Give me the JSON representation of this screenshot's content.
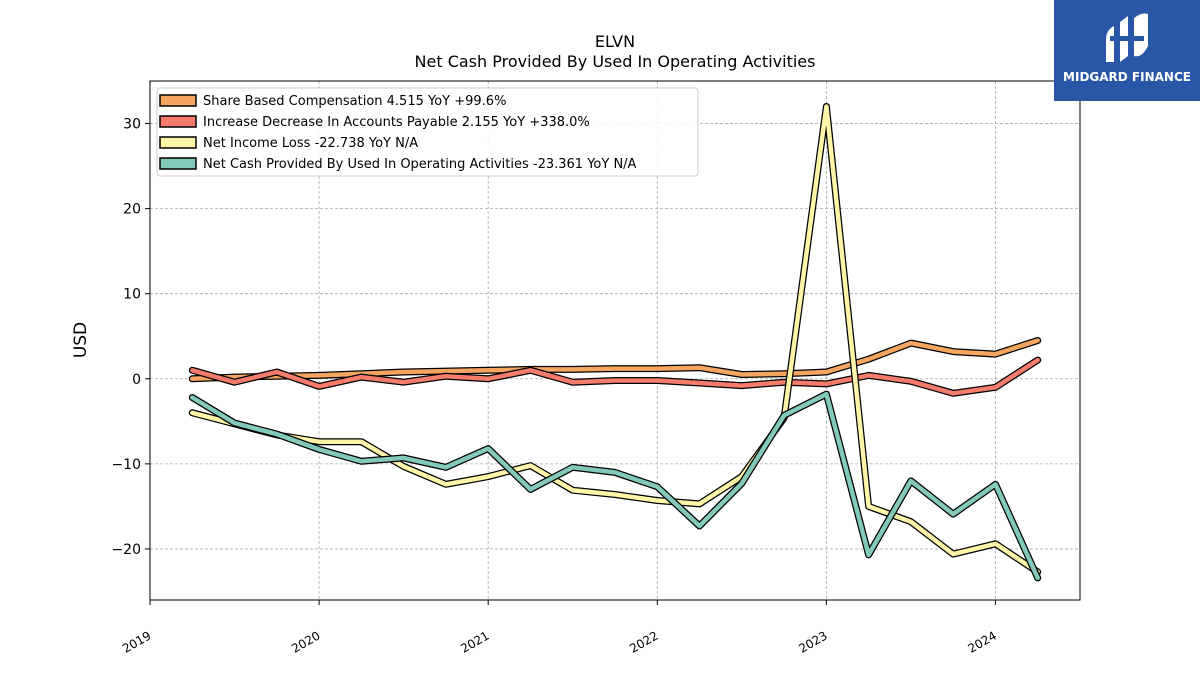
{
  "chart_data": {
    "type": "line",
    "title": "ELVN",
    "subtitle": "Net Cash Provided By Used In Operating Activities",
    "ylabel": "USD",
    "xlabel": "",
    "ylim": [
      -26,
      35
    ],
    "xlim": [
      2019.0,
      2024.5
    ],
    "yticks": [
      -20,
      -10,
      0,
      10,
      20,
      30
    ],
    "ytick_labels": [
      "−20",
      "−10",
      "0",
      "10",
      "20",
      "30"
    ],
    "xticks": [
      2019,
      2020,
      2021,
      2022,
      2023,
      2024
    ],
    "xtick_labels": [
      "2019",
      "2020",
      "2021",
      "2022",
      "2023",
      "2024"
    ],
    "grid": true,
    "legend_position": "top-left",
    "x": [
      2019.25,
      2019.5,
      2019.75,
      2020.0,
      2020.25,
      2020.5,
      2020.75,
      2021.0,
      2021.25,
      2021.5,
      2021.75,
      2022.0,
      2022.25,
      2022.5,
      2022.75,
      2023.0,
      2023.25,
      2023.5,
      2023.75,
      2024.0,
      2024.25
    ],
    "series": [
      {
        "name": "Share Based Compensation",
        "legend": "Share Based Compensation  4.515 YoY +99.6%",
        "color": "#f5a55f",
        "values": [
          0.0,
          0.2,
          0.3,
          0.4,
          0.6,
          0.8,
          0.9,
          1.0,
          1.1,
          1.1,
          1.2,
          1.2,
          1.3,
          0.5,
          0.6,
          0.8,
          2.3,
          4.2,
          3.2,
          2.9,
          4.5
        ]
      },
      {
        "name": "Increase Decrease In Accounts Payable",
        "legend": "Increase Decrease In Accounts Payable  2.155 YoY +338.0%",
        "color": "#f57b6c",
        "values": [
          1.0,
          -0.4,
          0.8,
          -0.9,
          0.2,
          -0.4,
          0.3,
          0.0,
          1.0,
          -0.4,
          -0.2,
          -0.2,
          -0.5,
          -0.8,
          -0.4,
          -0.6,
          0.4,
          -0.3,
          -1.7,
          -1.0,
          2.2
        ]
      },
      {
        "name": "Net Income Loss",
        "legend": "Net Income Loss  -22.738 YoY N/A",
        "color": "#fef5a8",
        "values": [
          -4.0,
          -5.3,
          -6.6,
          -7.4,
          -7.4,
          -10.3,
          -12.4,
          -11.5,
          -10.2,
          -13.1,
          -13.6,
          -14.3,
          -14.7,
          -11.5,
          -4.6,
          32.0,
          -15.0,
          -16.8,
          -20.6,
          -19.4,
          -22.7
        ]
      },
      {
        "name": "Net Cash Provided By Used In Operating Activities",
        "legend": "Net Cash Provided By Used In Operating Activities  -23.361 YoY N/A",
        "color": "#82c9b9",
        "values": [
          -2.2,
          -5.2,
          -6.5,
          -8.3,
          -9.7,
          -9.3,
          -10.4,
          -8.2,
          -13.0,
          -10.4,
          -11.0,
          -12.7,
          -17.3,
          -12.3,
          -4.3,
          -1.8,
          -20.7,
          -12.0,
          -15.9,
          -12.4,
          -23.4
        ]
      }
    ]
  },
  "logo": {
    "text": "MIDGARD FINANCE"
  }
}
